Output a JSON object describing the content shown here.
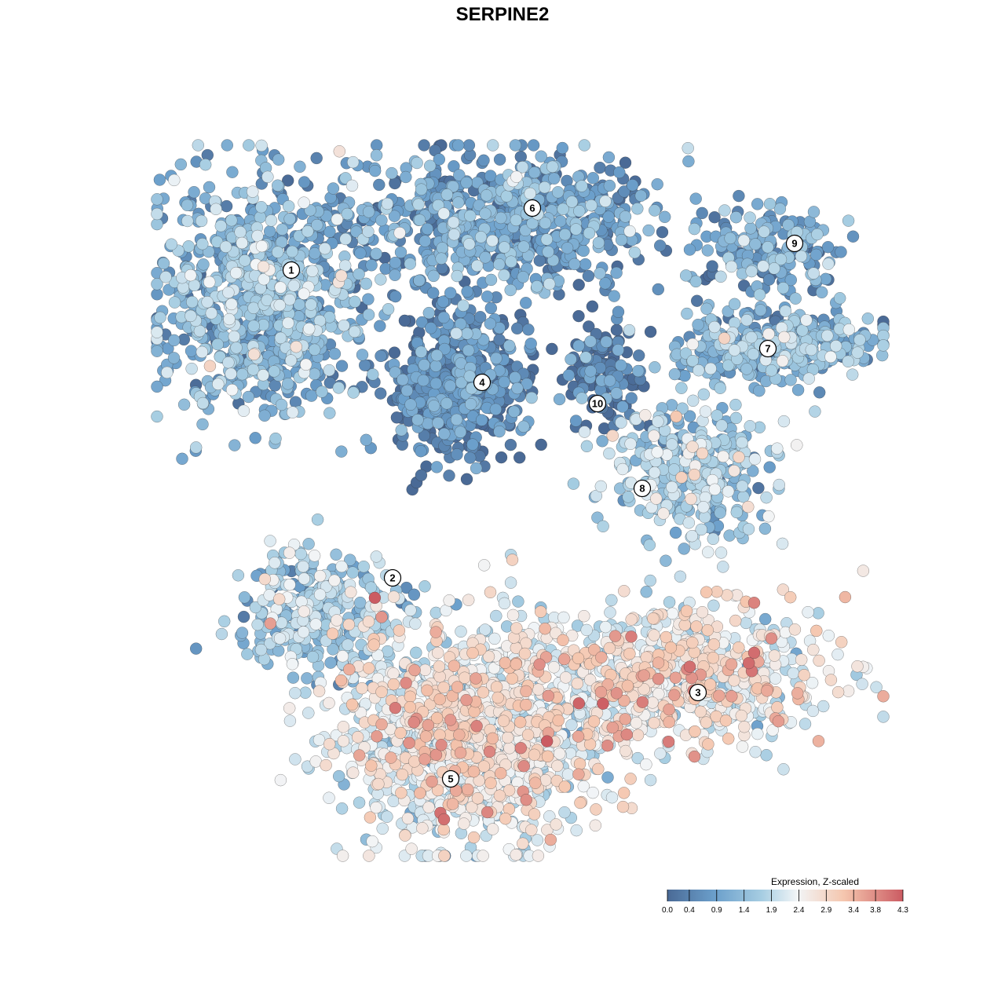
{
  "chart_data": {
    "type": "scatter",
    "title": "SERPINE2",
    "xlabel": "",
    "ylabel": "",
    "grid": false,
    "axes_visible": false,
    "color_scale": {
      "title": "Expression, Z-scaled",
      "min": 0.0,
      "max": 4.3,
      "ticks": [
        "0.0",
        "0.4",
        "0.9",
        "1.4",
        "1.9",
        "2.4",
        "2.9",
        "3.4",
        "3.8",
        "4.3"
      ],
      "tick_values": [
        0.0,
        0.4,
        0.9,
        1.4,
        1.9,
        2.4,
        2.9,
        3.4,
        3.8,
        4.3
      ],
      "colors": [
        "#4a6a96",
        "#6b9fcb",
        "#a6cde2",
        "#f2f5f7",
        "#f5c6ae",
        "#cb5b62"
      ],
      "legend_position": "bottom-right"
    },
    "clusters": [
      {
        "id": "1",
        "mean_expression": 1.2
      },
      {
        "id": "2",
        "mean_expression": 1.6
      },
      {
        "id": "3",
        "mean_expression": 2.6
      },
      {
        "id": "4",
        "mean_expression": 0.4
      },
      {
        "id": "5",
        "mean_expression": 2.5
      },
      {
        "id": "6",
        "mean_expression": 0.8
      },
      {
        "id": "7",
        "mean_expression": 1.2
      },
      {
        "id": "8",
        "mean_expression": 1.6
      },
      {
        "id": "9",
        "mean_expression": 0.9
      },
      {
        "id": "10",
        "mean_expression": 0.3
      }
    ]
  }
}
